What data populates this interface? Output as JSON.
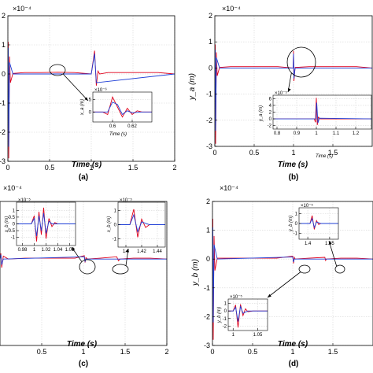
{
  "chart_data": [
    {
      "id": "a",
      "type": "line",
      "caption": "(a)",
      "title": "",
      "exponent": "×10⁻⁴",
      "xlabel": "Time (s)",
      "ylabel": "",
      "xlim": [
        0,
        2
      ],
      "ylim": [
        -3,
        2
      ],
      "xticks": [
        "0",
        "0.5",
        "1",
        "1.5",
        "2"
      ],
      "yticks": [
        "2",
        "1",
        "0",
        "-1",
        "-2",
        "-3"
      ],
      "grid": true,
      "series": [
        {
          "color": "#e0001b",
          "x": [
            0,
            0.005,
            0.01,
            0.02,
            0.03,
            0.06,
            0.2,
            0.4,
            0.6,
            0.8,
            1.0,
            1.04,
            1.06,
            1.08,
            1.1,
            1.2,
            1.4,
            1.6,
            1.8,
            2.0
          ],
          "y": [
            0,
            1.1,
            -2.9,
            0.6,
            -0.3,
            0.02,
            0.05,
            0.05,
            0.06,
            0.05,
            0,
            0.8,
            -0.4,
            0.1,
            0,
            0.05,
            0.05,
            0.05,
            0.05,
            0
          ]
        },
        {
          "color": "#1f3fd6",
          "x": [
            0,
            0.005,
            0.01,
            0.02,
            0.06,
            1.0,
            1.04,
            1.06,
            2.0
          ],
          "y": [
            0,
            0.9,
            -2.5,
            0.4,
            0,
            0,
            0.7,
            -0.3,
            0
          ]
        }
      ],
      "inset": {
        "exponent": "×10⁻⁶",
        "xlabel": "Time (s)",
        "ylabel": "x_a (m)",
        "xlim": [
          0.58,
          0.64
        ],
        "ylim": [
          -4,
          8
        ],
        "xticks": [
          "0.6",
          "0.62"
        ],
        "yticks": [
          "5",
          "0"
        ],
        "series": [
          {
            "color": "#e0001b",
            "x": [
              0.58,
              0.59,
              0.595,
              0.6,
              0.605,
              0.61,
              0.615,
              0.62,
              0.625,
              0.63,
              0.64
            ],
            "y": [
              0,
              0,
              -1,
              6,
              2,
              -2,
              1.5,
              -1,
              0.5,
              0,
              0
            ]
          },
          {
            "color": "#1f3fd6",
            "x": [
              0.58,
              0.59,
              0.595,
              0.6,
              0.605,
              0.61,
              0.615,
              0.62,
              0.63,
              0.64
            ],
            "y": [
              0,
              0,
              0,
              4,
              3,
              -1,
              0.5,
              -0.3,
              0,
              0
            ]
          }
        ]
      }
    },
    {
      "id": "b",
      "type": "line",
      "caption": "(b)",
      "title": "",
      "exponent": "×10⁻⁴",
      "xlabel": "Time (s)",
      "ylabel": "y_a (m)",
      "xlim": [
        0,
        2
      ],
      "ylim": [
        -3,
        2
      ],
      "xticks": [
        "0",
        "0.5",
        "1",
        "1.5"
      ],
      "yticks": [
        "2",
        "1",
        "0",
        "-1",
        "-2",
        "-3"
      ],
      "grid": true,
      "series": [
        {
          "color": "#e0001b",
          "x": [
            0,
            0.005,
            0.01,
            0.02,
            0.03,
            0.06,
            0.2,
            0.4,
            0.6,
            0.8,
            0.995,
            1.0,
            1.005,
            1.02,
            1.2,
            1.4,
            1.6,
            1.8,
            2.0
          ],
          "y": [
            0,
            0.9,
            -2.9,
            0.6,
            -0.3,
            0.02,
            0.05,
            0.05,
            0.05,
            0.05,
            0,
            0.65,
            -0.5,
            0.02,
            0.05,
            0.05,
            0.05,
            0.05,
            0
          ]
        },
        {
          "color": "#1f3fd6",
          "x": [
            0,
            0.005,
            0.01,
            0.02,
            0.06,
            0.995,
            1.0,
            1.005,
            1.02,
            2.0
          ],
          "y": [
            0,
            0.7,
            -2.4,
            0.4,
            0,
            0,
            0.55,
            -0.4,
            0,
            0
          ]
        }
      ],
      "inset": {
        "exponent": "×10⁻⁵",
        "xlabel": "Time (s)",
        "ylabel": "y_a (m)",
        "xlim": [
          0.78,
          1.28
        ],
        "ylim": [
          -3,
          7
        ],
        "xticks": [
          "0.8",
          "0.9",
          "1",
          "1.1",
          "1.2"
        ],
        "yticks": [
          "6",
          "4",
          "2",
          "0",
          "-2"
        ],
        "series": [
          {
            "color": "#e0001b",
            "x": [
              0.78,
              0.99,
              0.995,
              1.0,
              1.005,
              1.01,
              1.02,
              1.28
            ],
            "y": [
              0,
              0,
              -1,
              6.2,
              -1.8,
              0.5,
              0,
              0
            ]
          },
          {
            "color": "#1f3fd6",
            "x": [
              0.78,
              0.99,
              0.997,
              1.002,
              1.008,
              1.015,
              1.28
            ],
            "y": [
              0,
              0,
              0,
              4.8,
              -1.2,
              0.2,
              0
            ]
          }
        ]
      }
    },
    {
      "id": "c",
      "type": "line",
      "caption": "(c)",
      "title": "",
      "exponent": "×10⁻⁴",
      "xlabel": "Time (s)",
      "ylabel": "",
      "xlim": [
        0,
        2
      ],
      "ylim": [
        -3,
        2
      ],
      "xticks": [
        "0.5",
        "1",
        "1.5",
        "2"
      ],
      "yticks": [],
      "grid": true,
      "series": [
        {
          "color": "#e0001b",
          "x": [
            0,
            0.01,
            0.02,
            0.04,
            0.1,
            0.3,
            0.5,
            0.7,
            0.9,
            1.01,
            1.02,
            1.03,
            1.05,
            1.2,
            1.4,
            1.42,
            1.44,
            1.6,
            1.8,
            2.0
          ],
          "y": [
            0,
            0.2,
            -0.3,
            0.1,
            0,
            0.03,
            0.03,
            0.03,
            0.03,
            0.12,
            -0.12,
            0.05,
            0,
            0.03,
            0.08,
            -0.06,
            0,
            0.03,
            0.03,
            0
          ]
        },
        {
          "color": "#1f3fd6",
          "x": [
            0,
            0.01,
            0.02,
            0.04,
            1.01,
            1.02,
            1.03,
            2.0
          ],
          "y": [
            0,
            0.15,
            -0.2,
            0,
            0.08,
            -0.08,
            0,
            0
          ]
        }
      ],
      "insets": [
        {
          "exponent": "×10⁻⁵",
          "xlabel": "",
          "ylabel": "x_b (m)",
          "xlim": [
            0.97,
            1.07
          ],
          "ylim": [
            -1.6,
            1.6
          ],
          "xticks": [
            "0.98",
            "1",
            "1.02",
            "1.04",
            "1.06"
          ],
          "yticks": [
            "1",
            "0.5",
            "0",
            "-0.5",
            "-1"
          ],
          "series": [
            {
              "color": "#e0001b",
              "x": [
                0.97,
                0.995,
                1.0,
                1.004,
                1.008,
                1.012,
                1.016,
                1.02,
                1.025,
                1.03,
                1.035,
                1.04,
                1.07
              ],
              "y": [
                0,
                0,
                0.6,
                -1.3,
                0.9,
                -0.8,
                1.2,
                -1.1,
                0.4,
                -0.2,
                0.1,
                0,
                0
              ]
            },
            {
              "color": "#1f3fd6",
              "x": [
                0.97,
                0.995,
                1.0,
                1.004,
                1.008,
                1.012,
                1.016,
                1.02,
                1.025,
                1.03,
                1.07
              ],
              "y": [
                0,
                0,
                0.4,
                -0.9,
                0.6,
                -0.5,
                0.8,
                -0.7,
                0.2,
                0,
                0
              ]
            }
          ]
        },
        {
          "exponent": "×10⁻⁵",
          "xlabel": "",
          "ylabel": "x_b (m)",
          "xlim": [
            1.39,
            1.45
          ],
          "ylim": [
            -1.6,
            1.6
          ],
          "xticks": [
            "1.4",
            "1.42",
            "1.44"
          ],
          "yticks": [
            "1",
            "0",
            "-1"
          ],
          "series": [
            {
              "color": "#e0001b",
              "x": [
                1.39,
                1.405,
                1.41,
                1.415,
                1.42,
                1.425,
                1.43,
                1.45
              ],
              "y": [
                0,
                0,
                1.1,
                -0.9,
                0.4,
                -0.2,
                0,
                0
              ]
            },
            {
              "color": "#1f3fd6",
              "x": [
                1.39,
                1.405,
                1.41,
                1.415,
                1.42,
                1.43,
                1.45
              ],
              "y": [
                0,
                0,
                0.7,
                -0.5,
                0.2,
                0,
                0
              ]
            }
          ]
        }
      ]
    },
    {
      "id": "d",
      "type": "line",
      "caption": "(d)",
      "title": "",
      "exponent": "×10⁻⁴",
      "xlabel": "Time (s)",
      "ylabel": "y_b (m)",
      "xlim": [
        0,
        2
      ],
      "ylim": [
        -3,
        2
      ],
      "xticks": [
        "0",
        "0.5",
        "1",
        "1.5"
      ],
      "yticks": [
        "2",
        "1",
        "0",
        "-1",
        "-2",
        "-3"
      ],
      "grid": true,
      "series": [
        {
          "color": "#e0001b",
          "x": [
            0,
            0.005,
            0.01,
            0.02,
            0.03,
            0.06,
            0.2,
            0.4,
            0.6,
            0.8,
            1.0,
            1.01,
            1.02,
            1.03,
            1.2,
            1.4,
            1.41,
            1.42,
            1.6,
            1.8,
            2.0
          ],
          "y": [
            0,
            1.4,
            -2.8,
            0.8,
            -0.4,
            0.03,
            0.03,
            0.03,
            0.03,
            0.03,
            0.1,
            -0.15,
            0.06,
            0,
            0.03,
            0.06,
            -0.05,
            0,
            0.03,
            0.03,
            0
          ]
        },
        {
          "color": "#1f3fd6",
          "x": [
            0,
            0.005,
            0.01,
            0.02,
            0.06,
            1.0,
            1.01,
            1.02,
            2.0
          ],
          "y": [
            0,
            1.1,
            -2.2,
            0.5,
            0,
            0.07,
            -0.1,
            0,
            0
          ]
        }
      ],
      "insets": [
        {
          "exponent": "×10⁻⁵",
          "xlabel": "",
          "ylabel": "y_b (m)",
          "xlim": [
            1.38,
            1.47
          ],
          "ylim": [
            -1.6,
            1.6
          ],
          "xticks": [
            "1.4",
            "1.45"
          ],
          "yticks": [
            "1",
            "0",
            "-1"
          ],
          "series": [
            {
              "color": "#e0001b",
              "x": [
                1.38,
                1.405,
                1.41,
                1.415,
                1.42,
                1.425,
                1.43,
                1.47
              ],
              "y": [
                0,
                0,
                0.8,
                -0.6,
                0.3,
                -0.1,
                0,
                0
              ]
            },
            {
              "color": "#1f3fd6",
              "x": [
                1.38,
                1.405,
                1.41,
                1.415,
                1.42,
                1.43,
                1.47
              ],
              "y": [
                0,
                0,
                0.5,
                -0.4,
                0.15,
                0,
                0
              ]
            }
          ]
        },
        {
          "exponent": "×10⁻⁵",
          "xlabel": "",
          "ylabel": "y_b (m)",
          "xlim": [
            0.99,
            1.07
          ],
          "ylim": [
            -2.6,
            1.6
          ],
          "xticks": [
            "1",
            "1.05"
          ],
          "yticks": [
            "1",
            "0",
            "-1",
            "-2"
          ],
          "series": [
            {
              "color": "#e0001b",
              "x": [
                0.99,
                1.0,
                1.005,
                1.01,
                1.015,
                1.02,
                1.025,
                1.03,
                1.04,
                1.07
              ],
              "y": [
                0,
                0,
                0.8,
                -2.2,
                0.9,
                -0.6,
                0.3,
                -0.1,
                0,
                0
              ]
            },
            {
              "color": "#1f3fd6",
              "x": [
                0.99,
                1.0,
                1.005,
                1.01,
                1.015,
                1.02,
                1.03,
                1.07
              ],
              "y": [
                0,
                0,
                0.5,
                -1.4,
                0.6,
                -0.3,
                0,
                0
              ]
            }
          ]
        }
      ]
    }
  ]
}
